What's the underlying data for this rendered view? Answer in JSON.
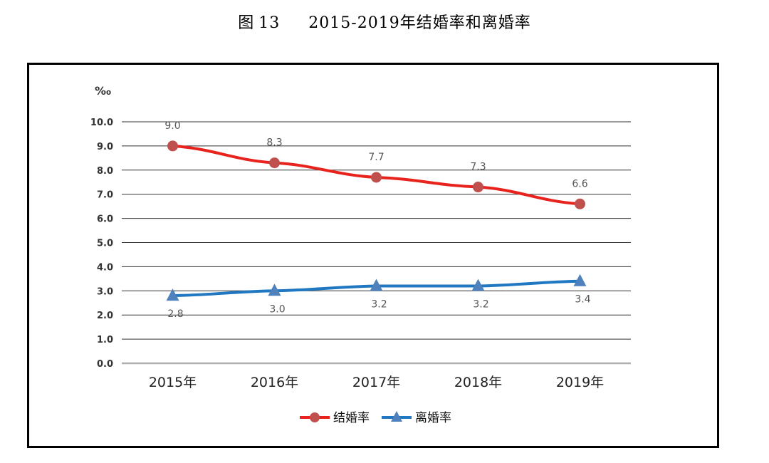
{
  "figure": {
    "label": "图",
    "number": "13",
    "title": "2015-2019年结婚率和离婚率"
  },
  "chart_data": {
    "type": "line",
    "unit": "‰",
    "categories": [
      "2015年",
      "2016年",
      "2017年",
      "2018年",
      "2019年"
    ],
    "ylim": [
      0,
      10
    ],
    "yticks": [
      "0.0",
      "1.0",
      "2.0",
      "3.0",
      "4.0",
      "5.0",
      "6.0",
      "7.0",
      "8.0",
      "9.0",
      "10.0"
    ],
    "grid": true,
    "legend_position": "bottom",
    "series": [
      {
        "name": "结婚率",
        "values": [
          9.0,
          8.3,
          7.7,
          7.3,
          6.6
        ],
        "labels": [
          "9.0",
          "8.3",
          "7.7",
          "7.3",
          "6.6"
        ],
        "color": "#e8221c",
        "marker_color": "#c0504d",
        "marker": "circle"
      },
      {
        "name": "离婚率",
        "values": [
          2.8,
          3.0,
          3.2,
          3.2,
          3.4
        ],
        "labels": [
          "2.8",
          "3.0",
          "3.2",
          "3.2",
          "3.4"
        ],
        "color": "#1f78c1",
        "marker_color": "#4f81bd",
        "marker": "triangle"
      }
    ]
  }
}
